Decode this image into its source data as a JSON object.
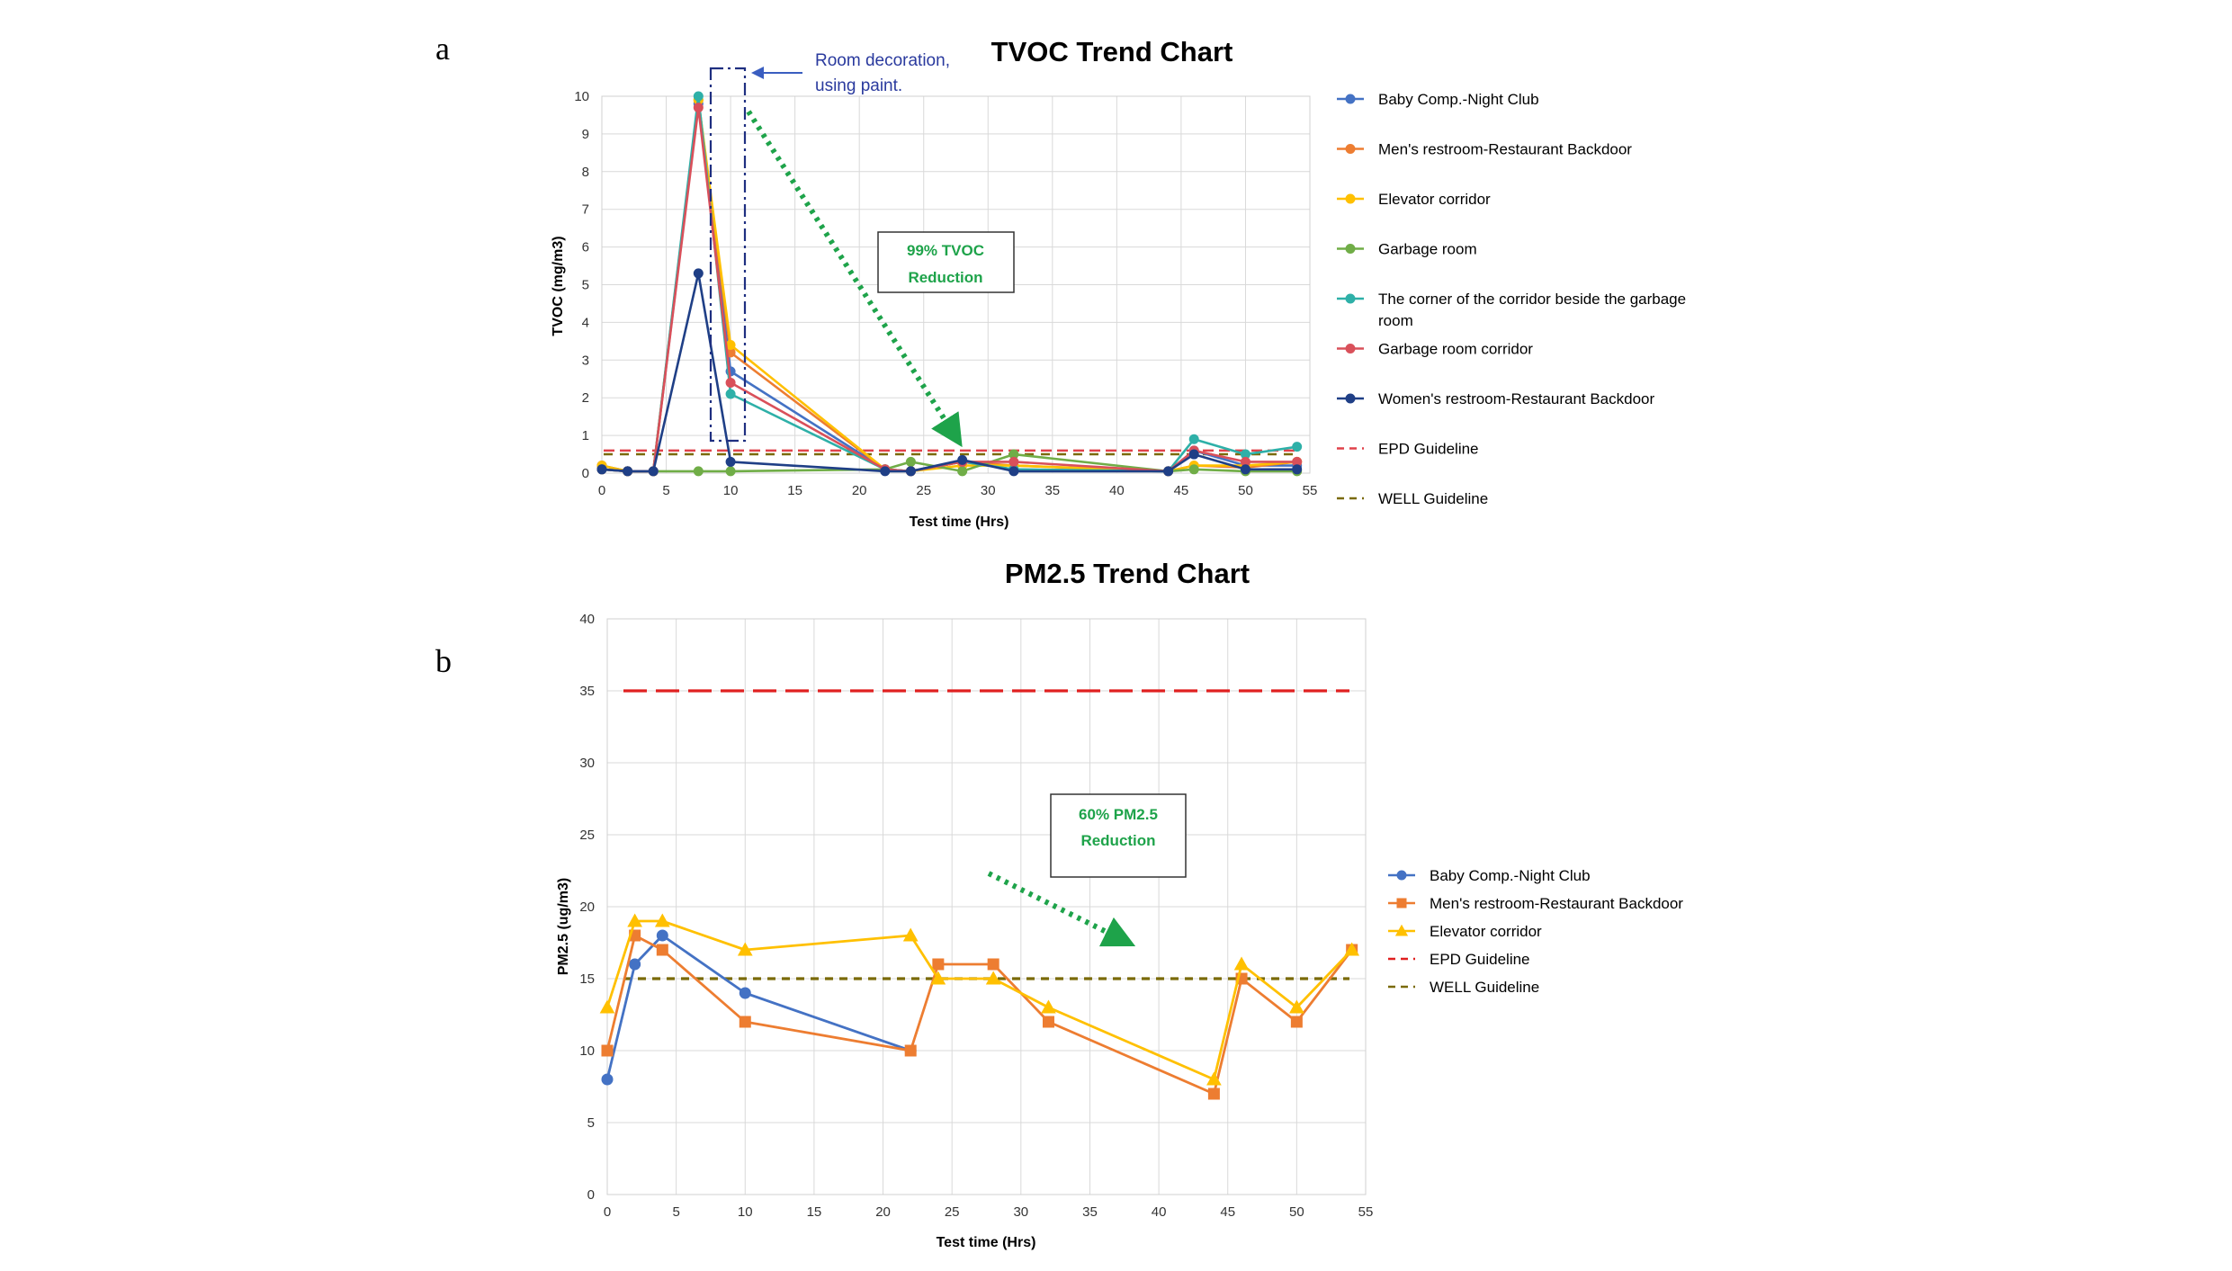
{
  "panels": {
    "a": "a",
    "b": "b"
  },
  "chart_data": [
    {
      "type": "line",
      "title": "TVOC Trend Chart",
      "xlabel": "Test time (Hrs)",
      "ylabel": "TVOC (mg/m3)",
      "xlim": [
        0,
        55
      ],
      "ylim": [
        0,
        10
      ],
      "xticks": [
        0,
        5,
        10,
        15,
        20,
        25,
        30,
        35,
        40,
        45,
        50,
        55
      ],
      "yticks": [
        0,
        1,
        2,
        3,
        4,
        5,
        6,
        7,
        8,
        9,
        10
      ],
      "grid": true,
      "legend_position": "right",
      "series": [
        {
          "name": "Baby Comp.-Night Club",
          "color": "#4472c4",
          "marker": "circle",
          "points": [
            [
              0,
              0.2
            ],
            [
              2,
              0.05
            ],
            [
              4,
              0.05
            ],
            [
              7.5,
              9.8
            ],
            [
              10,
              2.7
            ],
            [
              22,
              0.1
            ],
            [
              24,
              0.05
            ],
            [
              28,
              0.3
            ],
            [
              32,
              0.1
            ],
            [
              44,
              0.05
            ],
            [
              46,
              0.6
            ],
            [
              50,
              0.2
            ],
            [
              54,
              0.2
            ]
          ]
        },
        {
          "name": "Men's restroom-Restaurant Backdoor",
          "color": "#ed7d31",
          "marker": "circle",
          "points": [
            [
              0,
              0.2
            ],
            [
              2,
              0.05
            ],
            [
              4,
              0.05
            ],
            [
              7.5,
              9.9
            ],
            [
              10,
              3.2
            ],
            [
              22,
              0.1
            ],
            [
              24,
              0.05
            ],
            [
              28,
              0.3
            ],
            [
              32,
              0.2
            ],
            [
              44,
              0.05
            ],
            [
              46,
              0.2
            ],
            [
              50,
              0.15
            ],
            [
              54,
              0.3
            ]
          ]
        },
        {
          "name": "Elevator corridor",
          "color": "#ffc000",
          "marker": "circle",
          "points": [
            [
              0,
              0.2
            ],
            [
              2,
              0.05
            ],
            [
              4,
              0.05
            ],
            [
              7.5,
              9.9
            ],
            [
              10,
              3.4
            ],
            [
              22,
              0.1
            ],
            [
              24,
              0.05
            ],
            [
              28,
              0.2
            ],
            [
              32,
              0.2
            ],
            [
              44,
              0.05
            ],
            [
              46,
              0.2
            ],
            [
              50,
              0.2
            ],
            [
              54,
              0.3
            ]
          ]
        },
        {
          "name": "Garbage room",
          "color": "#70ad47",
          "marker": "circle",
          "points": [
            [
              0,
              0.1
            ],
            [
              2,
              0.05
            ],
            [
              4,
              0.05
            ],
            [
              7.5,
              0.05
            ],
            [
              10,
              0.05
            ],
            [
              22,
              0.1
            ],
            [
              24,
              0.3
            ],
            [
              28,
              0.05
            ],
            [
              32,
              0.5
            ],
            [
              44,
              0.05
            ],
            [
              46,
              0.1
            ],
            [
              50,
              0.05
            ],
            [
              54,
              0.05
            ]
          ]
        },
        {
          "name": "The corner of the corridor beside the garbage room",
          "color": "#2eb0a8",
          "marker": "circle",
          "points": [
            [
              0,
              0.1
            ],
            [
              2,
              0.05
            ],
            [
              4,
              0.05
            ],
            [
              7.5,
              10
            ],
            [
              10,
              2.1
            ],
            [
              22,
              0.1
            ],
            [
              24,
              0.05
            ],
            [
              28,
              0.3
            ],
            [
              32,
              0.1
            ],
            [
              44,
              0.05
            ],
            [
              46,
              0.9
            ],
            [
              50,
              0.5
            ],
            [
              54,
              0.7
            ]
          ]
        },
        {
          "name": "Garbage room corridor",
          "color": "#d9505a",
          "marker": "circle",
          "points": [
            [
              0,
              0.1
            ],
            [
              2,
              0.05
            ],
            [
              4,
              0.05
            ],
            [
              7.5,
              9.7
            ],
            [
              10,
              2.4
            ],
            [
              22,
              0.1
            ],
            [
              24,
              0.05
            ],
            [
              28,
              0.3
            ],
            [
              32,
              0.3
            ],
            [
              44,
              0.05
            ],
            [
              46,
              0.6
            ],
            [
              50,
              0.3
            ],
            [
              54,
              0.3
            ]
          ]
        },
        {
          "name": "Women's restroom-Restaurant Backdoor",
          "color": "#1f3f86",
          "marker": "circle",
          "points": [
            [
              0,
              0.1
            ],
            [
              2,
              0.05
            ],
            [
              4,
              0.05
            ],
            [
              7.5,
              5.3
            ],
            [
              10,
              0.3
            ],
            [
              22,
              0.05
            ],
            [
              24,
              0.05
            ],
            [
              28,
              0.35
            ],
            [
              32,
              0.05
            ],
            [
              44,
              0.05
            ],
            [
              46,
              0.5
            ],
            [
              50,
              0.1
            ],
            [
              54,
              0.1
            ]
          ]
        }
      ],
      "guidelines": [
        {
          "name": "EPD Guideline",
          "value": 0.6,
          "color": "#e0424a",
          "dash": "fine"
        },
        {
          "name": "WELL Guideline",
          "value": 0.5,
          "color": "#7a6a08",
          "dash": "coarse"
        }
      ],
      "annotations": {
        "decoration_line1": "Room decoration,",
        "decoration_line2": "using paint.",
        "reduction_line1": "99% TVOC",
        "reduction_line2": "Reduction"
      }
    },
    {
      "type": "line",
      "title": "PM2.5 Trend Chart",
      "xlabel": "Test time (Hrs)",
      "ylabel": "PM2.5 (ug/m3)",
      "xlim": [
        0,
        55
      ],
      "ylim": [
        0,
        40
      ],
      "xticks": [
        0,
        5,
        10,
        15,
        20,
        25,
        30,
        35,
        40,
        45,
        50,
        55
      ],
      "yticks": [
        0,
        5,
        10,
        15,
        20,
        25,
        30,
        35,
        40
      ],
      "grid": true,
      "legend_position": "right",
      "series": [
        {
          "name": "Baby Comp.-Night Club",
          "color": "#4472c4",
          "marker": "circle",
          "points": [
            [
              0,
              8
            ],
            [
              2,
              16
            ],
            [
              4,
              18
            ],
            [
              10,
              14
            ],
            [
              22,
              10
            ]
          ]
        },
        {
          "name": "Men's restroom-Restaurant Backdoor",
          "color": "#ed7d31",
          "marker": "square",
          "points": [
            [
              0,
              10
            ],
            [
              2,
              18
            ],
            [
              4,
              17
            ],
            [
              10,
              12
            ],
            [
              22,
              10
            ],
            [
              24,
              16
            ],
            [
              28,
              16
            ],
            [
              32,
              12
            ],
            [
              44,
              7
            ],
            [
              46,
              15
            ],
            [
              50,
              12
            ],
            [
              54,
              17
            ]
          ]
        },
        {
          "name": "Elevator corridor",
          "color": "#ffc000",
          "marker": "triangle",
          "points": [
            [
              0,
              13
            ],
            [
              2,
              19
            ],
            [
              4,
              19
            ],
            [
              10,
              17
            ],
            [
              22,
              18
            ],
            [
              24,
              15
            ],
            [
              28,
              15
            ],
            [
              32,
              13
            ],
            [
              44,
              8
            ],
            [
              46,
              16
            ],
            [
              50,
              13
            ],
            [
              54,
              17
            ]
          ]
        }
      ],
      "guidelines": [
        {
          "name": "EPD Guideline",
          "value": 35,
          "color": "#e02020",
          "dash": "long"
        },
        {
          "name": "WELL Guideline",
          "value": 15,
          "color": "#7a6a08",
          "dash": "medium"
        }
      ],
      "annotations": {
        "reduction_line1": "60% PM2.5",
        "reduction_line2": "Reduction"
      }
    }
  ]
}
